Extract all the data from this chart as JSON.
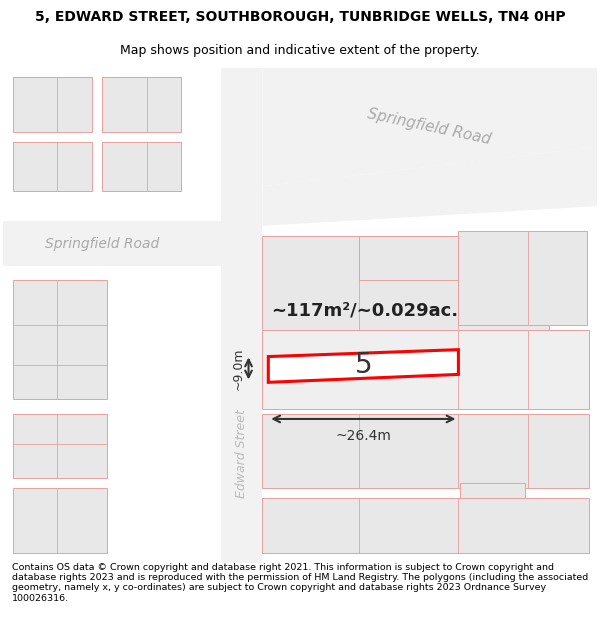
{
  "title_line1": "5, EDWARD STREET, SOUTHBOROUGH, TUNBRIDGE WELLS, TN4 0HP",
  "title_line2": "Map shows position and indicative extent of the property.",
  "footer_text": "Contains OS data © Crown copyright and database right 2021. This information is subject to Crown copyright and database rights 2023 and is reproduced with the permission of HM Land Registry. The polygons (including the associated geometry, namely x, y co-ordinates) are subject to Crown copyright and database rights 2023 Ordnance Survey 100026316.",
  "background_color": "#ffffff",
  "building_fill": "#e8e8e8",
  "building_edge": "#e8a0a0",
  "road_fill": "#f5f5f5",
  "street_label1": "Springfield Road",
  "street_label2": "Springfield Road",
  "street_label3": "Edward Street",
  "property_label": "5",
  "area_label": "~117m²/~0.029ac.",
  "width_label": "~26.4m",
  "height_label": "~9.0m",
  "property_color": "#ff0000",
  "annotation_color": "#222222",
  "title_fontsize": 10,
  "subtitle_fontsize": 9,
  "footer_fontsize": 6.8,
  "label_color_road": "#aaaaaa"
}
